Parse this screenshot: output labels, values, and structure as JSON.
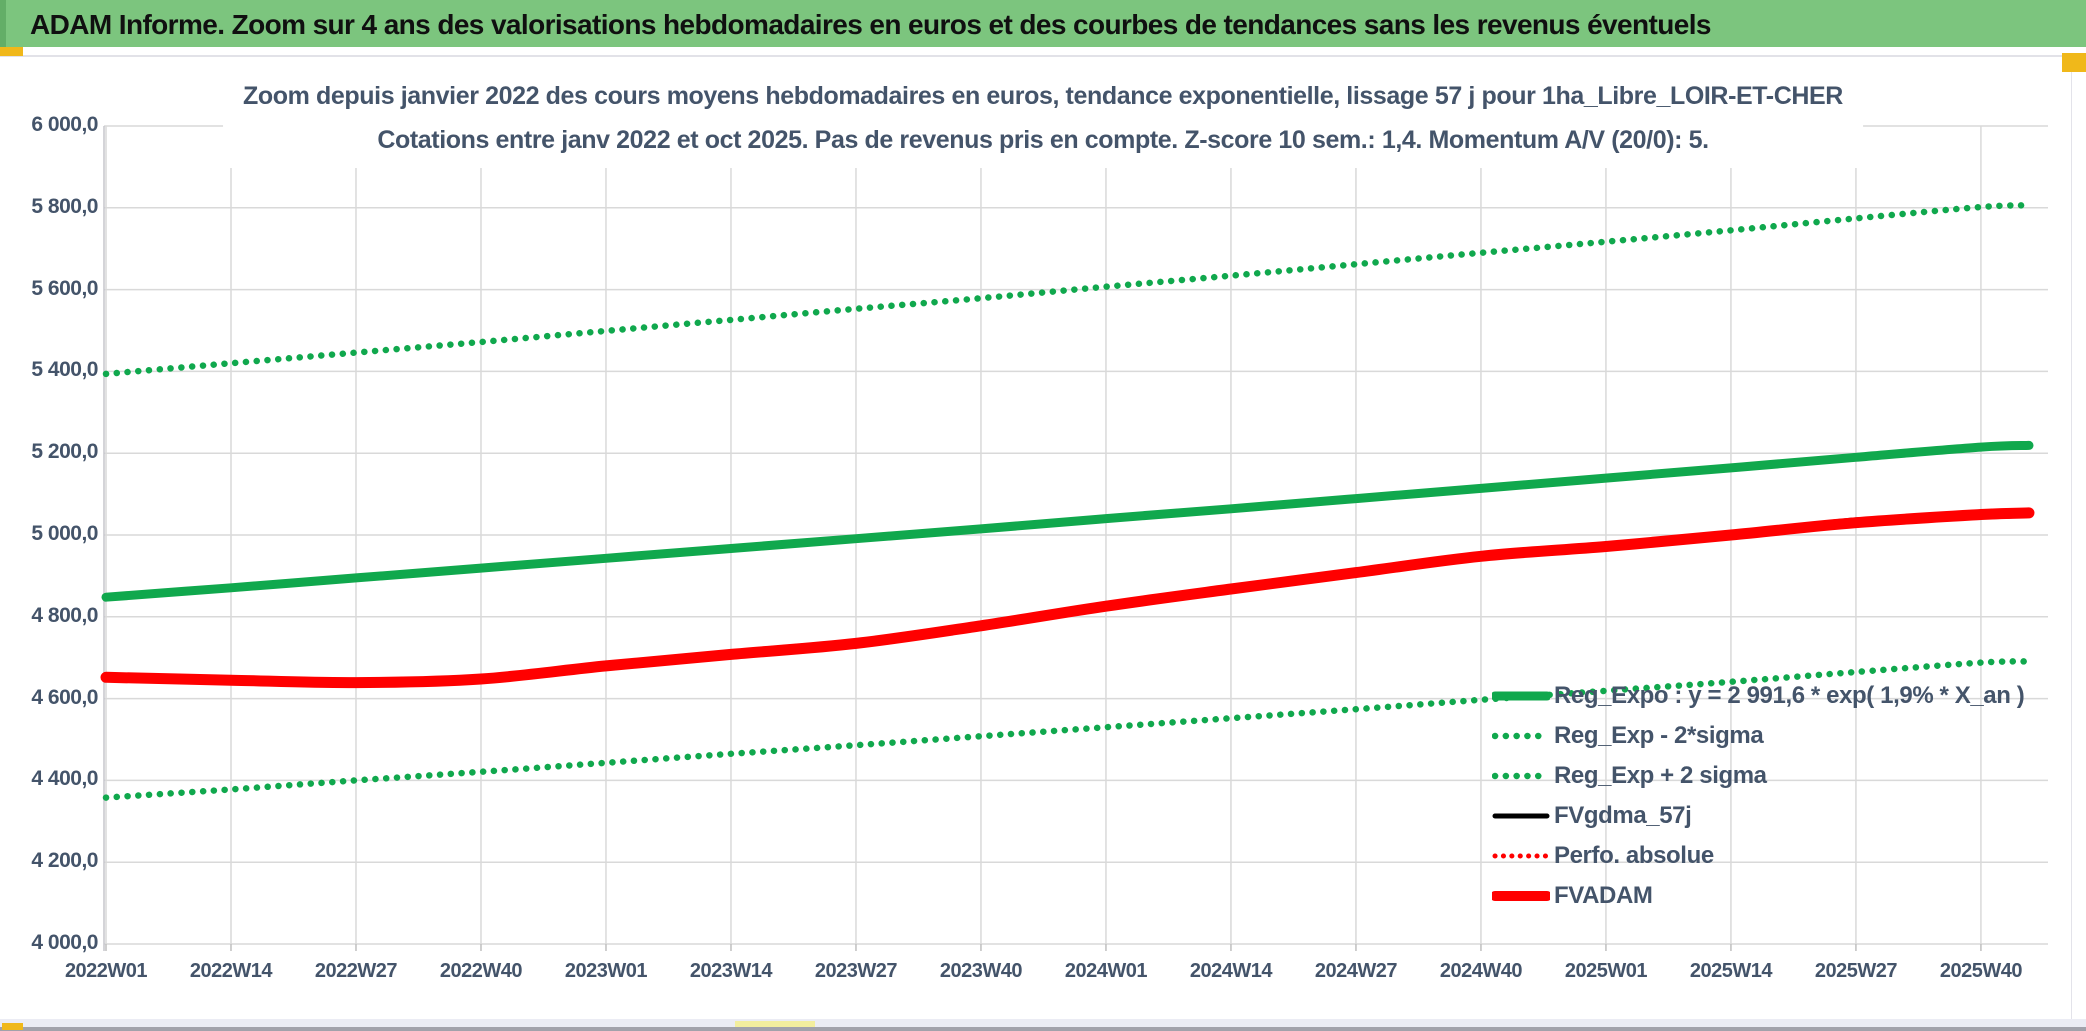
{
  "header": {
    "title": "ADAM Informe. Zoom sur 4 ans des valorisations hebdomadaires en euros et des courbes de tendances sans les revenus éventuels"
  },
  "chart_data": {
    "type": "line",
    "title_line1": "Zoom depuis janvier 2022 des cours moyens hebdomadaires en euros, tendance exponentielle, lissage 57 j pour 1ha_Libre_LOIR-ET-CHER",
    "title_line2": "Cotations entre janv 2022 et oct 2025. Pas de revenus pris en compte. Z-score 10 sem.: 1,4. Momentum A/V (20/0): 5.",
    "ylim": [
      4000,
      6000
    ],
    "y_step": 200,
    "grid": true,
    "legend_position": "inside-lower-right",
    "categories": [
      "2022W01",
      "2022W14",
      "2022W27",
      "2022W40",
      "2023W01",
      "2023W14",
      "2023W27",
      "2023W40",
      "2024W01",
      "2024W14",
      "2024W27",
      "2024W40",
      "2025W01",
      "2025W14",
      "2025W27",
      "2025W40"
    ],
    "tick_weeks": [
      0,
      13,
      26,
      39,
      52,
      65,
      78,
      91,
      104,
      117,
      130,
      143,
      156,
      169,
      182,
      195
    ],
    "sample_weeks": [
      0,
      13,
      26,
      39,
      52,
      65,
      78,
      91,
      104,
      117,
      130,
      143,
      156,
      169,
      182,
      195,
      200
    ],
    "series": [
      {
        "name": "Reg_Expo : y = 2 991,6 * exp( 1,9% *  X_an )",
        "color": "#10a84d",
        "dash": "solid",
        "width": 9,
        "draw_order": 3,
        "values": [
          4848,
          4871,
          4895,
          4919,
          4943,
          4967,
          4991,
          5015,
          5040,
          5064,
          5089,
          5114,
          5139,
          5164,
          5190,
          5215,
          5219
        ]
      },
      {
        "name": "Reg_Exp - 2*sigma",
        "color": "#10a84d",
        "dash": "dot",
        "width": 6.5,
        "draw_order": 1,
        "values": [
          4358,
          4378,
          4400,
          4421,
          4443,
          4465,
          4486,
          4508,
          4530,
          4552,
          4574,
          4597,
          4619,
          4641,
          4665,
          4688,
          4691
        ]
      },
      {
        "name": "Reg_Exp + 2 sigma",
        "color": "#10a84d",
        "dash": "dot",
        "width": 6.5,
        "draw_order": 2,
        "values": [
          5394,
          5420,
          5446,
          5472,
          5499,
          5526,
          5553,
          5579,
          5607,
          5634,
          5662,
          5690,
          5717,
          5745,
          5774,
          5802,
          5806
        ]
      },
      {
        "name": "FVgdma_57j",
        "color": "#000000",
        "dash": "solid",
        "width": 5,
        "draw_order": 4,
        "values": [
          4652,
          4646,
          4644,
          4652,
          4682,
          4714,
          4741,
          4780,
          4826,
          4868,
          4908,
          4948,
          4972,
          5000,
          5037,
          5044,
          5048
        ]
      },
      {
        "name": "Perfo. absolue",
        "color": "#ff0000",
        "dash": "dot",
        "width": 5,
        "draw_order": 5,
        "values": [
          4652,
          4645,
          4639,
          4648,
          4680,
          4708,
          4735,
          4778,
          4826,
          4868,
          4908,
          4948,
          4972,
          5000,
          5030,
          5050,
          5054
        ]
      },
      {
        "name": "FVADAM",
        "color": "#ff0000",
        "dash": "solid",
        "width": 11,
        "draw_order": 6,
        "values": [
          4652,
          4645,
          4639,
          4648,
          4680,
          4708,
          4735,
          4778,
          4826,
          4868,
          4908,
          4948,
          4972,
          5000,
          5030,
          5050,
          5054
        ]
      }
    ]
  },
  "colors": {
    "header_bg": "#7cc57e",
    "accent_gold": "#f0b81a",
    "text_dark": "#44546a",
    "grid": "#d9d9d9",
    "green_line": "#10a84d",
    "red_line": "#ff0000",
    "black_line": "#000000"
  }
}
